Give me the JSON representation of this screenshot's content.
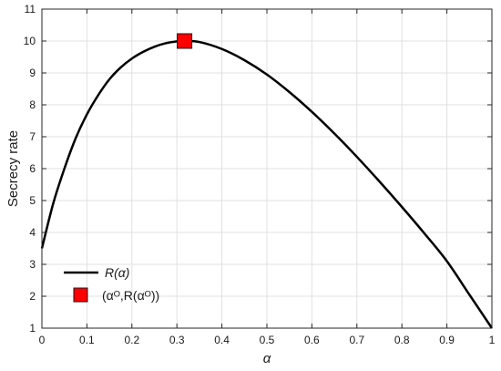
{
  "chart_data": {
    "type": "line",
    "xlabel": "α",
    "ylabel": "Secrecy rate",
    "xlim": [
      0,
      1
    ],
    "ylim": [
      1,
      11
    ],
    "xticks": [
      "0",
      "0.1",
      "0.2",
      "0.3",
      "0.4",
      "0.5",
      "0.6",
      "0.7",
      "0.8",
      "0.9",
      "1"
    ],
    "yticks": [
      "1",
      "2",
      "3",
      "4",
      "5",
      "6",
      "7",
      "8",
      "9",
      "10",
      "11"
    ],
    "grid": true,
    "legend_position": "bottom-left",
    "series": [
      {
        "name": "R(α)",
        "color": "#000000",
        "points": [
          [
            0.0,
            3.5
          ],
          [
            0.025,
            4.9
          ],
          [
            0.05,
            6.0
          ],
          [
            0.075,
            6.95
          ],
          [
            0.1,
            7.7
          ],
          [
            0.125,
            8.3
          ],
          [
            0.15,
            8.8
          ],
          [
            0.175,
            9.17
          ],
          [
            0.2,
            9.45
          ],
          [
            0.225,
            9.66
          ],
          [
            0.25,
            9.82
          ],
          [
            0.275,
            9.93
          ],
          [
            0.3,
            9.99
          ],
          [
            0.317,
            10.0
          ],
          [
            0.35,
            9.97
          ],
          [
            0.4,
            9.75
          ],
          [
            0.45,
            9.4
          ],
          [
            0.5,
            8.95
          ],
          [
            0.55,
            8.4
          ],
          [
            0.6,
            7.78
          ],
          [
            0.65,
            7.1
          ],
          [
            0.7,
            6.37
          ],
          [
            0.75,
            5.6
          ],
          [
            0.8,
            4.8
          ],
          [
            0.85,
            3.97
          ],
          [
            0.9,
            3.1
          ],
          [
            0.95,
            2.05
          ],
          [
            1.0,
            1.0
          ]
        ]
      }
    ],
    "marker": {
      "name": "(αᴼ,R(αᴼ))",
      "x": 0.317,
      "y": 10.0,
      "color": "#ff0000"
    }
  }
}
